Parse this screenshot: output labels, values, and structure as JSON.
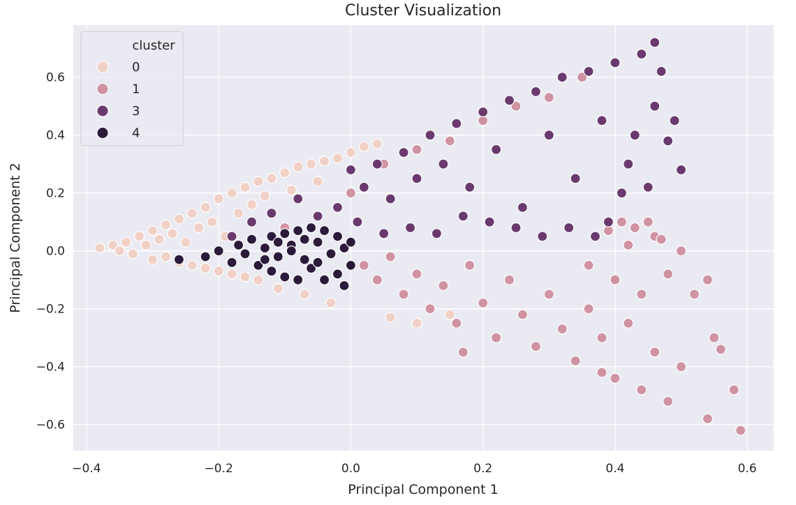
{
  "chart_data": {
    "type": "scatter",
    "title": "Cluster Visualization",
    "xlabel": "Principal Component 1",
    "ylabel": "Principal Component 2",
    "xlim": [
      -0.42,
      0.64
    ],
    "ylim": [
      -0.69,
      0.78
    ],
    "x_ticks": [
      -0.4,
      -0.2,
      0.0,
      0.2,
      0.4,
      0.6
    ],
    "y_ticks": [
      -0.6,
      -0.4,
      -0.2,
      0.0,
      0.2,
      0.4,
      0.6
    ],
    "x_tick_labels": [
      "−0.4",
      "−0.2",
      "0.0",
      "0.2",
      "0.4",
      "0.6"
    ],
    "y_tick_labels": [
      "−0.6",
      "−0.4",
      "−0.2",
      "0.0",
      "0.2",
      "0.4",
      "0.6"
    ],
    "grid": true,
    "background": "#eaeaf2",
    "legend": {
      "title": "cluster",
      "placement": "top-left",
      "entries": [
        {
          "label": "0",
          "color": "#f1d0c6"
        },
        {
          "label": "1",
          "color": "#cf93a2"
        },
        {
          "label": "3",
          "color": "#6a3a6f"
        },
        {
          "label": "4",
          "color": "#2c1a3a"
        }
      ]
    },
    "series": [
      {
        "name": "0",
        "color": "#f1d0c6",
        "points": [
          [
            -0.38,
            0.01
          ],
          [
            -0.36,
            0.02
          ],
          [
            -0.35,
            0.0
          ],
          [
            -0.34,
            0.03
          ],
          [
            -0.33,
            -0.01
          ],
          [
            -0.32,
            0.05
          ],
          [
            -0.31,
            0.02
          ],
          [
            -0.3,
            0.07
          ],
          [
            -0.3,
            -0.03
          ],
          [
            -0.29,
            0.04
          ],
          [
            -0.28,
            0.09
          ],
          [
            -0.28,
            -0.02
          ],
          [
            -0.27,
            0.06
          ],
          [
            -0.26,
            0.11
          ],
          [
            -0.26,
            -0.04
          ],
          [
            -0.25,
            0.03
          ],
          [
            -0.24,
            0.13
          ],
          [
            -0.24,
            -0.05
          ],
          [
            -0.23,
            0.08
          ],
          [
            -0.22,
            0.15
          ],
          [
            -0.22,
            -0.06
          ],
          [
            -0.21,
            0.1
          ],
          [
            -0.2,
            0.18
          ],
          [
            -0.2,
            -0.07
          ],
          [
            -0.19,
            0.05
          ],
          [
            -0.18,
            0.2
          ],
          [
            -0.18,
            -0.08
          ],
          [
            -0.17,
            0.13
          ],
          [
            -0.16,
            0.22
          ],
          [
            -0.16,
            -0.09
          ],
          [
            -0.15,
            0.16
          ],
          [
            -0.14,
            0.24
          ],
          [
            -0.14,
            -0.1
          ],
          [
            -0.13,
            0.19
          ],
          [
            -0.12,
            0.25
          ],
          [
            -0.11,
            -0.13
          ],
          [
            -0.1,
            0.27
          ],
          [
            -0.09,
            0.21
          ],
          [
            -0.08,
            0.29
          ],
          [
            -0.07,
            -0.15
          ],
          [
            -0.06,
            0.3
          ],
          [
            -0.05,
            0.24
          ],
          [
            -0.04,
            0.31
          ],
          [
            -0.03,
            -0.18
          ],
          [
            -0.02,
            0.32
          ],
          [
            0.0,
            0.34
          ],
          [
            0.02,
            0.36
          ],
          [
            0.04,
            0.37
          ],
          [
            0.06,
            -0.23
          ],
          [
            0.1,
            -0.25
          ],
          [
            0.15,
            -0.22
          ]
        ]
      },
      {
        "name": "1",
        "color": "#cf93a2",
        "points": [
          [
            0.02,
            -0.05
          ],
          [
            0.04,
            -0.1
          ],
          [
            0.06,
            -0.02
          ],
          [
            0.08,
            -0.15
          ],
          [
            0.1,
            -0.08
          ],
          [
            0.12,
            -0.2
          ],
          [
            0.14,
            -0.12
          ],
          [
            0.16,
            -0.25
          ],
          [
            0.18,
            -0.05
          ],
          [
            0.2,
            -0.18
          ],
          [
            0.22,
            -0.3
          ],
          [
            0.24,
            -0.1
          ],
          [
            0.26,
            -0.22
          ],
          [
            0.28,
            -0.33
          ],
          [
            0.3,
            -0.15
          ],
          [
            0.32,
            -0.27
          ],
          [
            0.34,
            -0.38
          ],
          [
            0.36,
            -0.05
          ],
          [
            0.36,
            -0.2
          ],
          [
            0.38,
            -0.42
          ],
          [
            0.38,
            -0.3
          ],
          [
            0.4,
            -0.1
          ],
          [
            0.4,
            -0.44
          ],
          [
            0.42,
            -0.25
          ],
          [
            0.42,
            0.02
          ],
          [
            0.44,
            -0.48
          ],
          [
            0.44,
            -0.15
          ],
          [
            0.46,
            -0.35
          ],
          [
            0.46,
            0.05
          ],
          [
            0.48,
            -0.52
          ],
          [
            0.48,
            -0.08
          ],
          [
            0.5,
            -0.4
          ],
          [
            0.5,
            0.0
          ],
          [
            0.52,
            -0.15
          ],
          [
            0.54,
            -0.58
          ],
          [
            0.54,
            -0.1
          ],
          [
            0.55,
            -0.3
          ],
          [
            0.56,
            -0.34
          ],
          [
            0.58,
            -0.48
          ],
          [
            0.59,
            -0.62
          ],
          [
            0.45,
            0.1
          ],
          [
            0.43,
            0.08
          ],
          [
            0.47,
            0.04
          ],
          [
            0.41,
            0.1
          ],
          [
            0.39,
            0.07
          ],
          [
            0.0,
            0.2
          ],
          [
            0.05,
            0.3
          ],
          [
            -0.05,
            0.12
          ],
          [
            0.1,
            0.35
          ],
          [
            -0.1,
            0.08
          ],
          [
            0.15,
            0.38
          ],
          [
            0.2,
            0.45
          ],
          [
            0.25,
            0.5
          ],
          [
            0.3,
            0.53
          ],
          [
            0.35,
            0.6
          ],
          [
            0.17,
            -0.35
          ]
        ]
      },
      {
        "name": "3",
        "color": "#6a3a6f",
        "points": [
          [
            0.0,
            0.28
          ],
          [
            0.02,
            0.22
          ],
          [
            0.04,
            0.3
          ],
          [
            0.06,
            0.18
          ],
          [
            0.08,
            0.34
          ],
          [
            0.1,
            0.25
          ],
          [
            0.12,
            0.4
          ],
          [
            0.14,
            0.3
          ],
          [
            0.16,
            0.44
          ],
          [
            0.18,
            0.22
          ],
          [
            0.2,
            0.48
          ],
          [
            0.22,
            0.35
          ],
          [
            0.24,
            0.52
          ],
          [
            0.26,
            0.15
          ],
          [
            0.28,
            0.55
          ],
          [
            0.3,
            0.4
          ],
          [
            0.32,
            0.6
          ],
          [
            0.34,
            0.25
          ],
          [
            0.36,
            0.62
          ],
          [
            0.38,
            0.45
          ],
          [
            0.4,
            0.65
          ],
          [
            0.42,
            0.3
          ],
          [
            0.44,
            0.68
          ],
          [
            0.46,
            0.72
          ],
          [
            0.46,
            0.5
          ],
          [
            0.47,
            0.62
          ],
          [
            0.48,
            0.38
          ],
          [
            0.49,
            0.45
          ],
          [
            0.5,
            0.28
          ],
          [
            0.45,
            0.22
          ],
          [
            0.43,
            0.4
          ],
          [
            0.41,
            0.2
          ],
          [
            0.39,
            0.1
          ],
          [
            0.37,
            0.05
          ],
          [
            0.33,
            0.08
          ],
          [
            0.29,
            0.05
          ],
          [
            0.25,
            0.08
          ],
          [
            0.21,
            0.1
          ],
          [
            0.17,
            0.12
          ],
          [
            0.13,
            0.06
          ],
          [
            0.09,
            0.08
          ],
          [
            0.05,
            0.06
          ],
          [
            0.01,
            0.1
          ],
          [
            -0.02,
            0.15
          ],
          [
            -0.05,
            0.12
          ],
          [
            -0.08,
            0.18
          ],
          [
            -0.12,
            0.13
          ],
          [
            -0.15,
            0.1
          ],
          [
            -0.18,
            0.05
          ]
        ]
      },
      {
        "name": "4",
        "color": "#2c1a3a",
        "points": [
          [
            -0.26,
            -0.03
          ],
          [
            -0.22,
            -0.02
          ],
          [
            -0.2,
            0.0
          ],
          [
            -0.18,
            -0.04
          ],
          [
            -0.17,
            0.02
          ],
          [
            -0.16,
            -0.01
          ],
          [
            -0.15,
            0.04
          ],
          [
            -0.14,
            -0.05
          ],
          [
            -0.13,
            0.01
          ],
          [
            -0.12,
            0.05
          ],
          [
            -0.12,
            -0.07
          ],
          [
            -0.11,
            -0.02
          ],
          [
            -0.1,
            0.06
          ],
          [
            -0.1,
            -0.09
          ],
          [
            -0.09,
            0.02
          ],
          [
            -0.08,
            0.07
          ],
          [
            -0.08,
            -0.1
          ],
          [
            -0.07,
            -0.03
          ],
          [
            -0.06,
            0.08
          ],
          [
            -0.06,
            -0.06
          ],
          [
            -0.05,
            0.03
          ],
          [
            -0.04,
            0.07
          ],
          [
            -0.04,
            -0.1
          ],
          [
            -0.03,
            -0.01
          ],
          [
            -0.02,
            0.05
          ],
          [
            -0.02,
            -0.08
          ],
          [
            -0.01,
            0.01
          ],
          [
            0.0,
            -0.05
          ],
          [
            0.0,
            0.03
          ],
          [
            -0.01,
            -0.12
          ],
          [
            -0.05,
            -0.04
          ],
          [
            -0.09,
            0.0
          ],
          [
            -0.13,
            -0.03
          ],
          [
            -0.07,
            0.04
          ],
          [
            -0.11,
            0.03
          ]
        ]
      }
    ]
  }
}
